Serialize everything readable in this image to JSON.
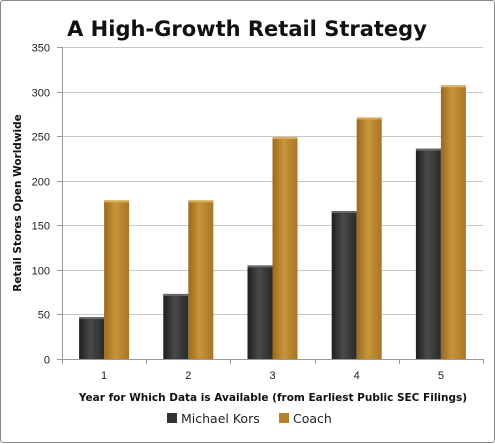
{
  "chart_data": {
    "type": "bar",
    "title": "A High-Growth Retail Strategy",
    "xlabel": "Year for Which Data is Available (from Earliest Public SEC Filings)",
    "ylabel": "Retail Stores Open Worldwide",
    "categories": [
      "1",
      "2",
      "3",
      "4",
      "5"
    ],
    "ylim": [
      0,
      350
    ],
    "yticks": [
      "0",
      "50",
      "100",
      "150",
      "200",
      "250",
      "300",
      "350"
    ],
    "grid": true,
    "legend_position": "bottom",
    "series": [
      {
        "name": "Michael Kors",
        "values": [
          47,
          73,
          105,
          166,
          236
        ],
        "color": "#3a3a3a"
      },
      {
        "name": "Coach",
        "values": [
          178,
          178,
          249,
          271,
          307
        ],
        "color": "#b5832a"
      }
    ]
  }
}
